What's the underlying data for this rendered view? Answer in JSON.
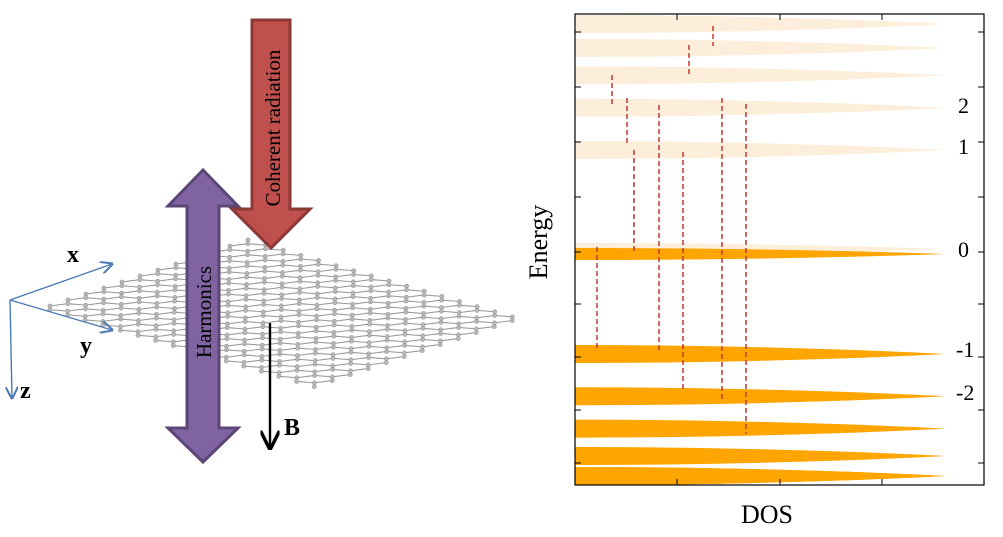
{
  "axes": {
    "x_label": "x",
    "y_label": "y",
    "z_label": "z",
    "color": "#4a7ab5"
  },
  "arrows": {
    "coherent_label": "Coherent radiation",
    "coherent_color": "#c0504d",
    "harmonics_label": "Harmonics",
    "harmonics_color": "#8064a2",
    "field_label": "B"
  },
  "lattice": {
    "color": "#9a9a9a",
    "atom_color": "#b8b8b8"
  },
  "chart_data": {
    "type": "area",
    "xlabel": "DOS",
    "ylabel": "Energy",
    "level_labels": [
      {
        "text": "2",
        "n": 2
      },
      {
        "text": "1",
        "n": 1
      },
      {
        "text": "0",
        "n": 0
      },
      {
        "text": "-1",
        "n": -1
      },
      {
        "text": "-2",
        "n": -2
      }
    ],
    "upper_levels": [
      -1,
      1,
      2,
      3,
      4,
      5,
      6
    ],
    "lower_levels": [
      -1,
      -2,
      -3,
      -4,
      -5,
      -6
    ],
    "colors": {
      "empty": "#fdeedb",
      "filled": "#ffa500",
      "transition": "#c0392b"
    }
  }
}
